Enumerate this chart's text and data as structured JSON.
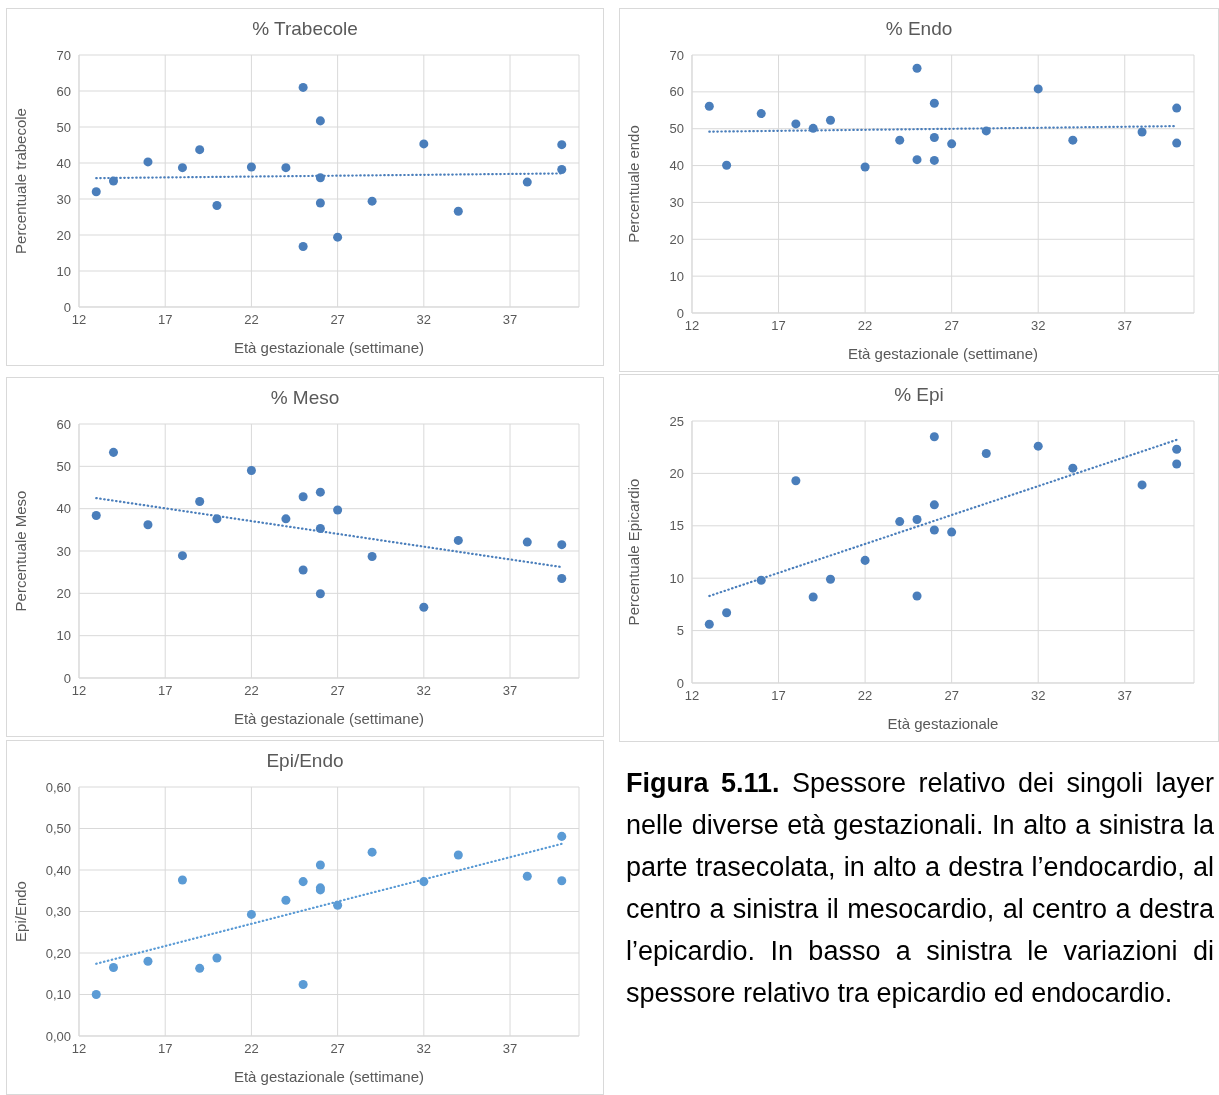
{
  "chart_data": [
    {
      "type": "scatter",
      "title": "% Trabecole",
      "xlabel": "Età gestazionale (settimane)",
      "ylabel": "Percentuale trabecole",
      "xlim": [
        12,
        41
      ],
      "xticks": [
        12,
        17,
        22,
        27,
        32,
        37
      ],
      "ylim": [
        0,
        70
      ],
      "yticks": [
        0,
        10,
        20,
        30,
        40,
        50,
        60,
        70
      ],
      "grid": true,
      "series": [
        {
          "type": "scatter",
          "marker": "circle",
          "color": "#4a7ebb",
          "x": [
            13,
            14,
            16,
            18,
            19,
            20,
            22,
            24,
            25,
            25,
            26,
            26,
            26,
            27,
            29,
            32,
            34,
            38,
            40,
            40
          ],
          "values": [
            32,
            35,
            40.3,
            38.7,
            43.7,
            28.2,
            38.9,
            38.7,
            61,
            16.8,
            51.7,
            35.9,
            28.9,
            19.4,
            29.4,
            45.3,
            26.6,
            34.7,
            45.1,
            38.2
          ]
        },
        {
          "type": "line",
          "marker": "none",
          "line_style": "dotted",
          "color": "#4a7ebb",
          "x": [
            13,
            40
          ],
          "values": [
            35.8,
            37.1
          ]
        }
      ]
    },
    {
      "type": "scatter",
      "title": "% Endo",
      "xlabel": "Età gestazionale (settimane)",
      "ylabel": "Percentuale endo",
      "xlim": [
        12,
        41
      ],
      "xticks": [
        12,
        17,
        22,
        27,
        32,
        37
      ],
      "ylim": [
        0,
        70
      ],
      "yticks": [
        0,
        10,
        20,
        30,
        40,
        50,
        60,
        70
      ],
      "grid": true,
      "series": [
        {
          "type": "scatter",
          "marker": "circle",
          "color": "#4a7ebb",
          "x": [
            13,
            14,
            16,
            18,
            19,
            20,
            22,
            24,
            25,
            25,
            26,
            26,
            26,
            27,
            29,
            32,
            34,
            38,
            40,
            40
          ],
          "values": [
            56.1,
            40.1,
            54.1,
            51.3,
            50.1,
            52.3,
            39.6,
            46.9,
            66.4,
            41.6,
            56.9,
            47.6,
            41.4,
            45.9,
            49.4,
            60.8,
            46.9,
            49.1,
            55.6,
            46.1
          ]
        },
        {
          "type": "line",
          "marker": "none",
          "line_style": "dotted",
          "color": "#4a7ebb",
          "x": [
            13,
            40
          ],
          "values": [
            49.2,
            50.7
          ]
        }
      ]
    },
    {
      "type": "scatter",
      "title": "% Meso",
      "xlabel": "Età gestazionale (settimane)",
      "ylabel": "Percentuale Meso",
      "xlim": [
        12,
        41
      ],
      "xticks": [
        12,
        17,
        22,
        27,
        32,
        37
      ],
      "ylim": [
        0,
        60
      ],
      "yticks": [
        0,
        10,
        20,
        30,
        40,
        50,
        60
      ],
      "grid": true,
      "series": [
        {
          "type": "scatter",
          "marker": "circle",
          "color": "#4a7ebb",
          "x": [
            13,
            14,
            16,
            18,
            19,
            20,
            22,
            24,
            25,
            25,
            26,
            26,
            26,
            27,
            29,
            32,
            34,
            38,
            40,
            40
          ],
          "values": [
            38.4,
            53.3,
            36.2,
            28.9,
            41.7,
            37.6,
            49,
            37.6,
            42.8,
            25.5,
            43.9,
            35.3,
            19.9,
            39.7,
            28.7,
            16.7,
            32.5,
            32.1,
            31.5,
            23.5
          ]
        },
        {
          "type": "line",
          "marker": "none",
          "line_style": "dotted",
          "color": "#4a7ebb",
          "x": [
            13,
            40
          ],
          "values": [
            42.5,
            26.2
          ]
        }
      ]
    },
    {
      "type": "scatter",
      "title": "% Epi",
      "xlabel": "Età gestazionale",
      "ylabel": "Percentuale Epicardio",
      "xlim": [
        12,
        41
      ],
      "xticks": [
        12,
        17,
        22,
        27,
        32,
        37
      ],
      "ylim": [
        0,
        25
      ],
      "yticks": [
        0,
        5,
        10,
        15,
        20,
        25
      ],
      "grid": true,
      "series": [
        {
          "type": "scatter",
          "marker": "circle",
          "color": "#4a7ebb",
          "x": [
            13,
            14,
            16,
            18,
            19,
            20,
            22,
            24,
            25,
            25,
            26,
            26,
            26,
            27,
            29,
            32,
            34,
            38,
            40,
            40
          ],
          "values": [
            5.6,
            6.7,
            9.8,
            19.3,
            8.2,
            9.9,
            11.7,
            15.4,
            15.6,
            8.3,
            23.5,
            17,
            14.6,
            14.4,
            21.9,
            22.6,
            20.5,
            18.9,
            22.3,
            20.9
          ]
        },
        {
          "type": "line",
          "marker": "none",
          "line_style": "dotted",
          "color": "#4a7ebb",
          "x": [
            13,
            40
          ],
          "values": [
            8.3,
            23.2
          ]
        }
      ]
    },
    {
      "type": "scatter",
      "title": "Epi/Endo",
      "xlabel": "Età gestazionale (settimane)",
      "ylabel": "Epi/Endo",
      "xlim": [
        12,
        41
      ],
      "xticks": [
        12,
        17,
        22,
        27,
        32,
        37
      ],
      "ylim": [
        0,
        0.6
      ],
      "yticks": [
        {
          "value": 0,
          "label": "0,00"
        },
        {
          "value": 0.1,
          "label": "0,10"
        },
        {
          "value": 0.2,
          "label": "0,20"
        },
        {
          "value": 0.3,
          "label": "0,30"
        },
        {
          "value": 0.4,
          "label": "0,40"
        },
        {
          "value": 0.5,
          "label": "0,50"
        },
        {
          "value": 0.6,
          "label": "0,60"
        }
      ],
      "grid": true,
      "series": [
        {
          "type": "scatter",
          "marker": "circle",
          "color": "#5b9bd5",
          "x": [
            13,
            14,
            16,
            18,
            19,
            20,
            22,
            24,
            25,
            25,
            26,
            26,
            26,
            27,
            29,
            32,
            34,
            38,
            40,
            40
          ],
          "values": [
            0.1,
            0.165,
            0.18,
            0.376,
            0.163,
            0.188,
            0.293,
            0.327,
            0.372,
            0.124,
            0.412,
            0.357,
            0.352,
            0.315,
            0.443,
            0.372,
            0.436,
            0.385,
            0.481,
            0.374
          ]
        },
        {
          "type": "line",
          "marker": "none",
          "line_style": "dotted",
          "color": "#5b9bd5",
          "x": [
            13,
            40
          ],
          "values": [
            0.174,
            0.463
          ]
        }
      ]
    },
    {
      "type": "other",
      "title": "Figura 5.11.",
      "annotations": [
        "Spessore relativo dei singoli layer nelle diverse età gestazionali. In alto a sinistra la parte trasecolata, in alto a destra l’endocardio, al centro a sinistra il mesocardio, al centro a destra l’epicardio. In basso a sinistra le variazioni di spessore relativo tra epicardio ed endocardio."
      ]
    }
  ]
}
